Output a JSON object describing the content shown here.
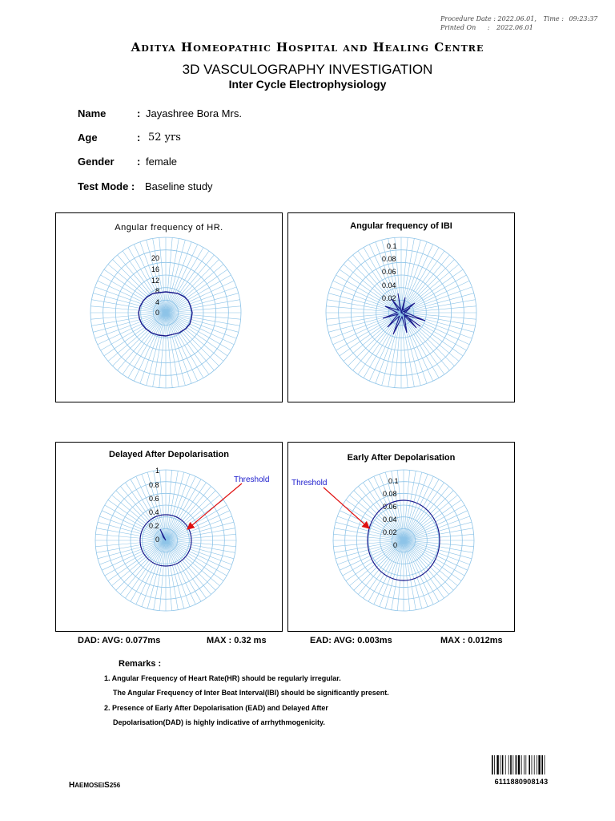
{
  "header_meta": {
    "procedure_label": "Procedure Date :",
    "procedure_date": "2022.06.01,",
    "time_label": "Time :",
    "time_value": "09:23:37",
    "printed_label": "Printed On",
    "printed_sep": ":",
    "printed_date": "2022.06.01"
  },
  "hospital_name": "Aditya Homeopathic Hospital and Healing Centre",
  "report_title": "3D VASCULOGRAPHY INVESTIGATION",
  "report_subtitle": "Inter Cycle Electrophysiology",
  "patient": {
    "name_label": "Name",
    "name_value": "Jayashree  Bora  Mrs.",
    "age_label": "Age",
    "age_value": "52  yrs",
    "gender_label": "Gender",
    "gender_value": "female",
    "mode_label": "Test Mode :",
    "mode_value": "Baseline study"
  },
  "charts": {
    "hr": {
      "title": "Angular frequency of HR.",
      "ticks": [
        "20",
        "16",
        "12",
        "8",
        "4",
        "0"
      ]
    },
    "ibi": {
      "title": "Angular frequency of  IBI",
      "ticks": [
        "0.1",
        "0.08",
        "0.06",
        "0.04",
        "0.02"
      ]
    },
    "dad": {
      "title": "Delayed  After  Depolarisation",
      "ticks": [
        "1",
        "0.8",
        "0.6",
        "0.4",
        "0.2",
        "0"
      ],
      "threshold_label": "Threshold"
    },
    "ead": {
      "title": "Early  After  Depolarisation",
      "ticks": [
        "0.1",
        "0.08",
        "0.06",
        "0.04",
        "0.02",
        "0"
      ],
      "threshold_label": "Threshold"
    }
  },
  "stats": {
    "dad_avg": "DAD:  AVG:  0.077ms",
    "dad_max": "MAX :  0.32  ms",
    "ead_avg": "EAD:  AVG:  0.003ms",
    "ead_max": "MAX :  0.012ms"
  },
  "remarks": {
    "heading": "Remarks :",
    "line1": "1. Angular Frequency of Heart Rate(HR) should be regularly irregular.",
    "line2": "The Angular Frequency of Inter Beat Interval(IBI) should be significantly present.",
    "line3": "2. Presence of Early After Depolarisation (EAD) and Delayed After",
    "line4": "Depolarisation(DAD) is highly indicative of arrhythmogenicity."
  },
  "footer": {
    "brand_h": "H",
    "brand_mid": "AEMOSEI",
    "brand_s": "S",
    "brand_num": "256",
    "barcode_number": "6111880908143"
  },
  "colors": {
    "grid": "#8ec4e8",
    "trace": "#1a1a8c",
    "arrow": "#e01010",
    "threshold_text": "#1a1acc"
  }
}
